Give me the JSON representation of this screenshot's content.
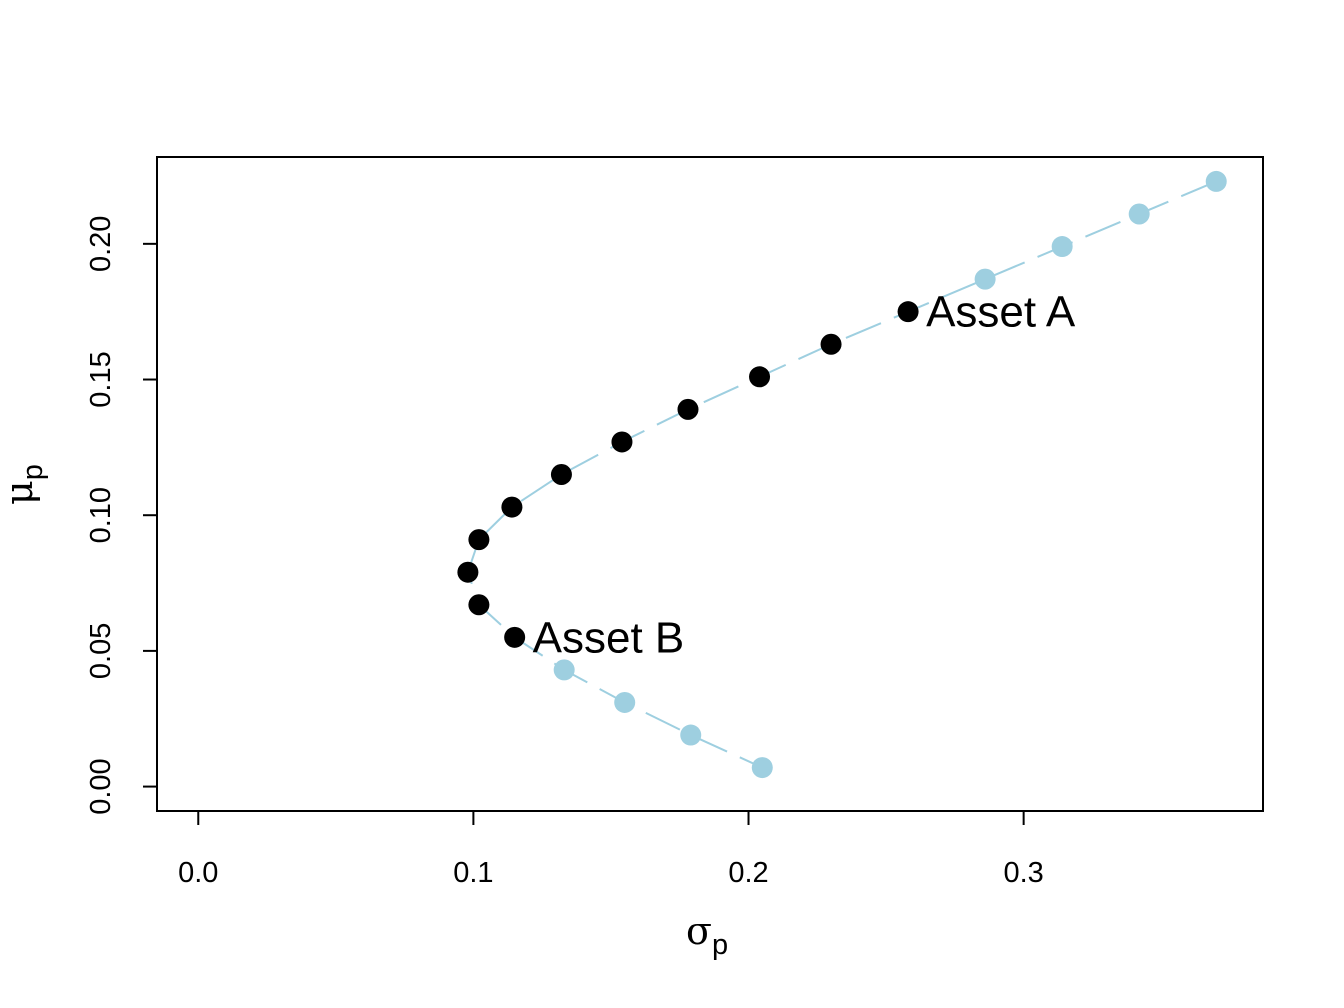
{
  "chart_data": {
    "type": "scatter",
    "xlabel": {
      "symbol": "σ",
      "subscript": "p"
    },
    "ylabel": {
      "symbol": "μ",
      "subscript": "p"
    },
    "xlim": [
      -0.015,
      0.387
    ],
    "ylim": [
      -0.009,
      0.232
    ],
    "x_ticks": [
      "0.0",
      "0.1",
      "0.2",
      "0.3"
    ],
    "y_ticks": [
      "0.00",
      "0.05",
      "0.10",
      "0.15",
      "0.20"
    ],
    "grid": false,
    "legend": "none",
    "line_color": "#9ecfe0",
    "series": [
      {
        "color": "#9ecfe0",
        "points": [
          {
            "x": 0.37,
            "y": 0.223
          },
          {
            "x": 0.342,
            "y": 0.211
          },
          {
            "x": 0.314,
            "y": 0.199
          },
          {
            "x": 0.286,
            "y": 0.187
          },
          {
            "x": 0.133,
            "y": 0.043
          },
          {
            "x": 0.155,
            "y": 0.031
          },
          {
            "x": 0.179,
            "y": 0.019
          },
          {
            "x": 0.205,
            "y": 0.007
          }
        ]
      },
      {
        "color": "#000000",
        "points": [
          {
            "x": 0.258,
            "y": 0.175
          },
          {
            "x": 0.23,
            "y": 0.163
          },
          {
            "x": 0.204,
            "y": 0.151
          },
          {
            "x": 0.178,
            "y": 0.139
          },
          {
            "x": 0.154,
            "y": 0.127
          },
          {
            "x": 0.132,
            "y": 0.115
          },
          {
            "x": 0.114,
            "y": 0.103
          },
          {
            "x": 0.102,
            "y": 0.091
          },
          {
            "x": 0.098,
            "y": 0.079
          },
          {
            "x": 0.102,
            "y": 0.067
          },
          {
            "x": 0.115,
            "y": 0.055
          }
        ]
      }
    ],
    "frontier_line": [
      {
        "x": 0.37,
        "y": 0.223
      },
      {
        "x": 0.342,
        "y": 0.211
      },
      {
        "x": 0.314,
        "y": 0.199
      },
      {
        "x": 0.286,
        "y": 0.187
      },
      {
        "x": 0.258,
        "y": 0.175
      },
      {
        "x": 0.23,
        "y": 0.163
      },
      {
        "x": 0.204,
        "y": 0.151
      },
      {
        "x": 0.178,
        "y": 0.139
      },
      {
        "x": 0.154,
        "y": 0.127
      },
      {
        "x": 0.132,
        "y": 0.115
      },
      {
        "x": 0.114,
        "y": 0.103
      },
      {
        "x": 0.102,
        "y": 0.091
      },
      {
        "x": 0.098,
        "y": 0.079
      },
      {
        "x": 0.102,
        "y": 0.067
      },
      {
        "x": 0.115,
        "y": 0.055
      },
      {
        "x": 0.133,
        "y": 0.043
      },
      {
        "x": 0.155,
        "y": 0.031
      },
      {
        "x": 0.179,
        "y": 0.019
      },
      {
        "x": 0.205,
        "y": 0.007
      }
    ],
    "annotations": [
      {
        "text": "Asset A",
        "x": 0.258,
        "y": 0.175
      },
      {
        "text": "Asset B",
        "x": 0.115,
        "y": 0.055
      }
    ]
  }
}
